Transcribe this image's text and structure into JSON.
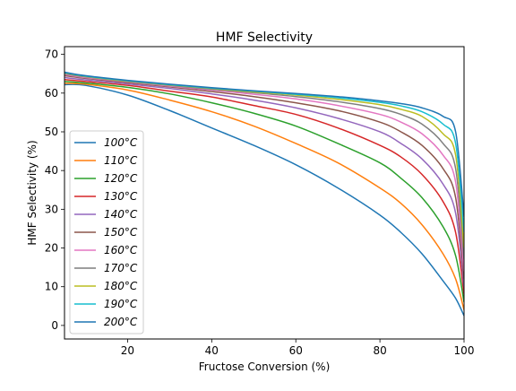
{
  "chart_data": {
    "type": "line",
    "title": "HMF Selectivity",
    "xlabel": "Fructose Conversion (%)",
    "ylabel": "HMF Selectivity (%)",
    "xlim": [
      5,
      100
    ],
    "ylim": [
      -3.5,
      72
    ],
    "xticks": [
      20,
      40,
      60,
      80,
      100
    ],
    "yticks": [
      0,
      10,
      20,
      30,
      40,
      50,
      60,
      70
    ],
    "grid": false,
    "legend_position": "lower-left",
    "x": [
      5,
      10,
      20,
      30,
      40,
      50,
      60,
      70,
      80,
      85,
      90,
      95,
      98,
      100
    ],
    "series": [
      {
        "name": "100°C",
        "color": "#1f77b4",
        "values": [
          62.2,
          62.0,
          59.5,
          55.5,
          51.0,
          46.5,
          41.5,
          35.5,
          28.5,
          24.0,
          18.5,
          11.5,
          7.0,
          2.5
        ]
      },
      {
        "name": "110°C",
        "color": "#ff7f0e",
        "values": [
          62.5,
          62.3,
          60.8,
          58.2,
          55.2,
          51.5,
          47.0,
          42.0,
          35.5,
          31.5,
          26.0,
          18.5,
          12.0,
          4.0
        ]
      },
      {
        "name": "120°C",
        "color": "#2ca02c",
        "values": [
          63.0,
          62.6,
          61.5,
          59.8,
          57.5,
          54.8,
          51.5,
          47.0,
          42.0,
          38.0,
          33.0,
          25.5,
          18.0,
          6.0
        ]
      },
      {
        "name": "130°C",
        "color": "#d62728",
        "values": [
          63.5,
          63.0,
          62.0,
          60.5,
          59.0,
          56.8,
          54.5,
          51.0,
          46.5,
          43.5,
          39.0,
          32.0,
          24.0,
          8.0
        ]
      },
      {
        "name": "140°C",
        "color": "#9467bd",
        "values": [
          64.0,
          63.4,
          62.4,
          61.2,
          59.8,
          58.2,
          56.2,
          53.5,
          50.0,
          47.0,
          43.0,
          36.5,
          29.0,
          10.0
        ]
      },
      {
        "name": "150°C",
        "color": "#8c564b",
        "values": [
          64.5,
          63.8,
          62.7,
          61.6,
          60.4,
          59.1,
          57.5,
          55.5,
          52.5,
          50.0,
          46.5,
          40.5,
          33.0,
          12.0
        ]
      },
      {
        "name": "160°C",
        "color": "#e377c2",
        "values": [
          64.8,
          64.0,
          62.9,
          61.8,
          60.8,
          59.7,
          58.5,
          56.8,
          54.5,
          52.5,
          49.5,
          44.0,
          37.0,
          14.0
        ]
      },
      {
        "name": "170°C",
        "color": "#7f7f7f",
        "values": [
          65.0,
          64.2,
          63.0,
          62.0,
          61.0,
          60.1,
          59.1,
          57.8,
          56.0,
          54.5,
          52.0,
          47.0,
          40.5,
          17.0
        ]
      },
      {
        "name": "180°C",
        "color": "#bcbd22",
        "values": [
          65.2,
          64.3,
          63.1,
          62.1,
          61.2,
          60.3,
          59.5,
          58.4,
          57.0,
          55.8,
          54.0,
          49.5,
          44.0,
          20.0
        ]
      },
      {
        "name": "190°C",
        "color": "#17becf",
        "values": [
          65.3,
          64.4,
          63.2,
          62.2,
          61.3,
          60.5,
          59.7,
          58.8,
          57.6,
          56.7,
          55.2,
          52.0,
          47.0,
          24.0
        ]
      },
      {
        "name": "200°C",
        "color": "#1f77b4",
        "values": [
          65.4,
          64.5,
          63.3,
          62.3,
          61.4,
          60.6,
          59.9,
          59.1,
          58.0,
          57.3,
          56.2,
          54.0,
          50.0,
          28.0
        ]
      }
    ]
  }
}
